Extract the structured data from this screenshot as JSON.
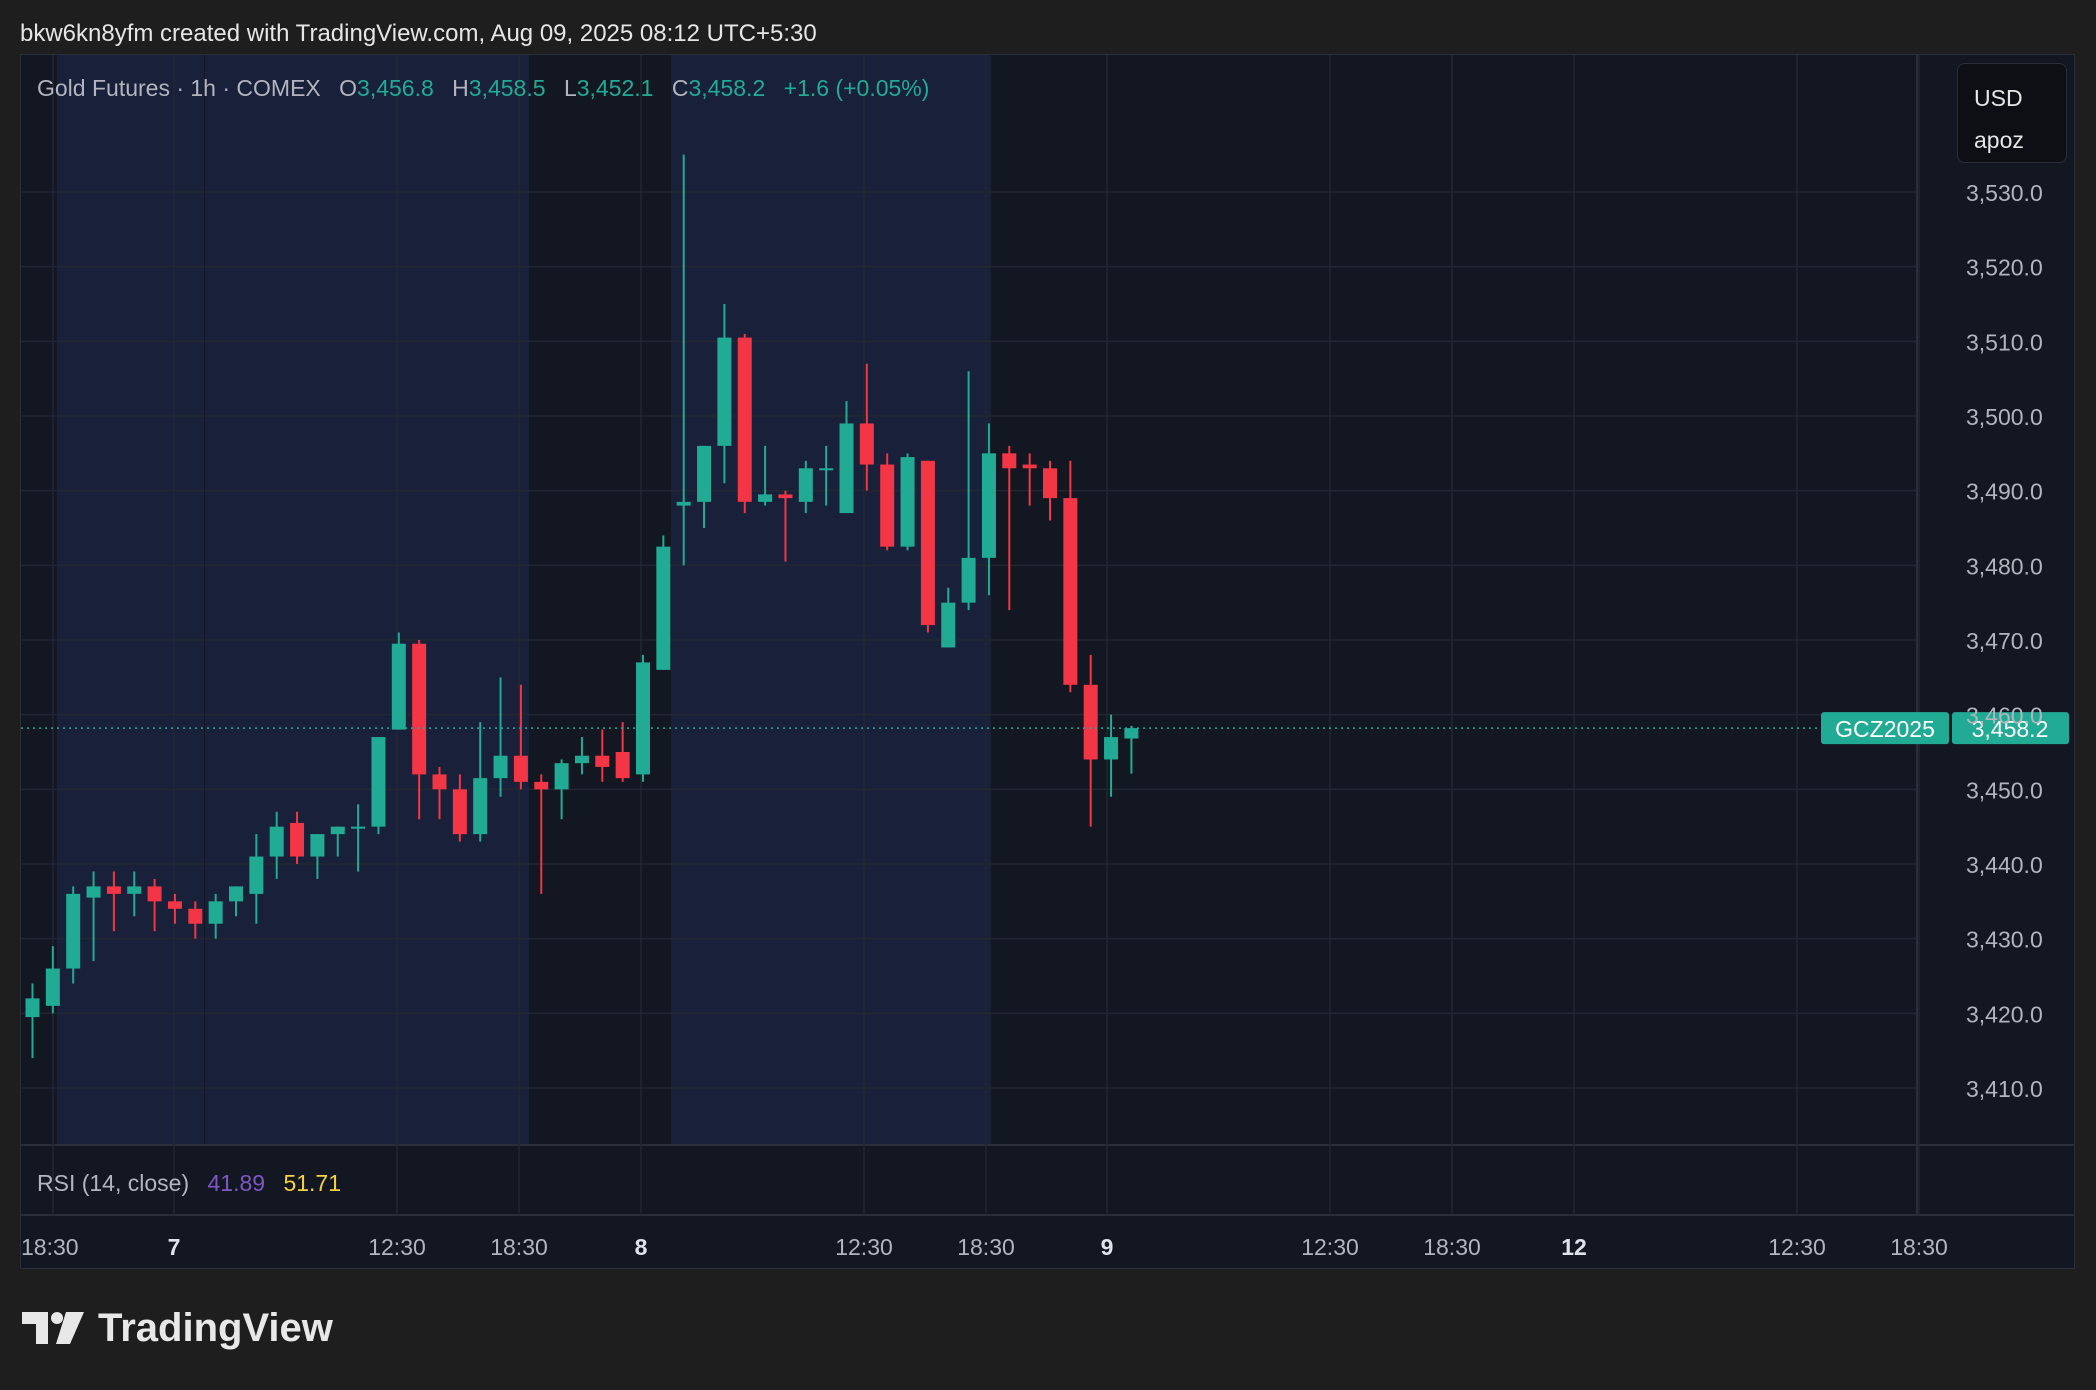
{
  "caption": "bkw6kn8yfm created with TradingView.com, Aug 09, 2025 08:12 UTC+5:30",
  "legend": {
    "symbol": "Gold Futures · 1h · COMEX",
    "open_label": "O",
    "open": "3,456.8",
    "high_label": "H",
    "high": "3,458.5",
    "low_label": "L",
    "low": "3,452.1",
    "close_label": "C",
    "close": "3,458.2",
    "change": "+1.6 (+0.05%)"
  },
  "currency_box": {
    "currency": "USD",
    "unit": "apoz"
  },
  "price_tag": {
    "symbol": "GCZ2025",
    "price": "3,458.2"
  },
  "rsi": {
    "label": "RSI (14, close)",
    "value1": "41.89",
    "value2": "51.71"
  },
  "brand": {
    "wordmark": "TradingView"
  },
  "colors": {
    "up": "#22ab94",
    "down": "#f23645",
    "background": "#131722",
    "session_highlight": "#18203a",
    "grid": "#232733",
    "rsi_a": "#7e57c2",
    "rsi_b": "#f5d142"
  },
  "chart_data": {
    "type": "candlestick",
    "interval": "1h",
    "ylim": [
      3402,
      3547
    ],
    "y_ticks": [
      "3,410.0",
      "3,420.0",
      "3,430.0",
      "3,440.0",
      "3,450.0",
      "3,460.0",
      "3,470.0",
      "3,480.0",
      "3,490.0",
      "3,500.0",
      "3,510.0",
      "3,520.0",
      "3,530.0"
    ],
    "x_ticks": [
      {
        "label": "18:30",
        "bold": false
      },
      {
        "label": "7",
        "bold": true
      },
      {
        "label": "12:30",
        "bold": false
      },
      {
        "label": "18:30",
        "bold": false
      },
      {
        "label": "8",
        "bold": true
      },
      {
        "label": "12:30",
        "bold": false
      },
      {
        "label": "18:30",
        "bold": false
      },
      {
        "label": "9",
        "bold": true
      },
      {
        "label": "12:30",
        "bold": false
      },
      {
        "label": "18:30",
        "bold": false
      },
      {
        "label": "12",
        "bold": true
      },
      {
        "label": "12:30",
        "bold": false
      },
      {
        "label": "18:30",
        "bold": false
      }
    ],
    "last_price": 3458.2,
    "candles": [
      {
        "o": 3419.5,
        "h": 3424,
        "l": 3414,
        "c": 3422
      },
      {
        "o": 3421,
        "h": 3429,
        "l": 3420,
        "c": 3426
      },
      {
        "o": 3426,
        "h": 3437,
        "l": 3424,
        "c": 3436
      },
      {
        "o": 3435.5,
        "h": 3439,
        "l": 3427,
        "c": 3437
      },
      {
        "o": 3437,
        "h": 3439,
        "l": 3431,
        "c": 3436
      },
      {
        "o": 3436,
        "h": 3439,
        "l": 3433,
        "c": 3437
      },
      {
        "o": 3437,
        "h": 3438,
        "l": 3431,
        "c": 3435
      },
      {
        "o": 3435,
        "h": 3436,
        "l": 3432,
        "c": 3434
      },
      {
        "o": 3434,
        "h": 3435,
        "l": 3430,
        "c": 3432
      },
      {
        "o": 3432,
        "h": 3436,
        "l": 3430,
        "c": 3435
      },
      {
        "o": 3435,
        "h": 3437,
        "l": 3433,
        "c": 3437
      },
      {
        "o": 3436,
        "h": 3444,
        "l": 3432,
        "c": 3441
      },
      {
        "o": 3441,
        "h": 3447,
        "l": 3438,
        "c": 3445
      },
      {
        "o": 3445.5,
        "h": 3447,
        "l": 3440,
        "c": 3441
      },
      {
        "o": 3441,
        "h": 3444,
        "l": 3438,
        "c": 3444
      },
      {
        "o": 3444,
        "h": 3445,
        "l": 3441,
        "c": 3445
      },
      {
        "o": 3445,
        "h": 3448,
        "l": 3439,
        "c": 3445
      },
      {
        "o": 3445,
        "h": 3457,
        "l": 3444,
        "c": 3457
      },
      {
        "o": 3458,
        "h": 3471,
        "l": 3458,
        "c": 3469.5
      },
      {
        "o": 3469.5,
        "h": 3470,
        "l": 3446,
        "c": 3452
      },
      {
        "o": 3452,
        "h": 3453,
        "l": 3446,
        "c": 3450
      },
      {
        "o": 3450,
        "h": 3452,
        "l": 3443,
        "c": 3444
      },
      {
        "o": 3444,
        "h": 3459,
        "l": 3443,
        "c": 3451.5
      },
      {
        "o": 3451.5,
        "h": 3465,
        "l": 3449,
        "c": 3454.5
      },
      {
        "o": 3454.5,
        "h": 3464,
        "l": 3450,
        "c": 3451
      },
      {
        "o": 3451,
        "h": 3452,
        "l": 3436,
        "c": 3450
      },
      {
        "o": 3450,
        "h": 3454,
        "l": 3446,
        "c": 3453.5
      },
      {
        "o": 3453.5,
        "h": 3457,
        "l": 3452,
        "c": 3454.5
      },
      {
        "o": 3454.5,
        "h": 3458,
        "l": 3451,
        "c": 3453
      },
      {
        "o": 3455,
        "h": 3459,
        "l": 3451,
        "c": 3451.5
      },
      {
        "o": 3452,
        "h": 3468,
        "l": 3451,
        "c": 3467
      },
      {
        "o": 3466,
        "h": 3484,
        "l": 3466,
        "c": 3482.5
      },
      {
        "o": 3488,
        "h": 3535,
        "l": 3480,
        "c": 3488.5
      },
      {
        "o": 3488.5,
        "h": 3496,
        "l": 3485,
        "c": 3496
      },
      {
        "o": 3496,
        "h": 3515,
        "l": 3491,
        "c": 3510.5
      },
      {
        "o": 3510.5,
        "h": 3511,
        "l": 3487,
        "c": 3488.5
      },
      {
        "o": 3488.5,
        "h": 3496,
        "l": 3488,
        "c": 3489.5
      },
      {
        "o": 3489.5,
        "h": 3490,
        "l": 3480.5,
        "c": 3489
      },
      {
        "o": 3488.5,
        "h": 3494,
        "l": 3487,
        "c": 3493
      },
      {
        "o": 3493,
        "h": 3496,
        "l": 3488,
        "c": 3493
      },
      {
        "o": 3487,
        "h": 3502,
        "l": 3487,
        "c": 3499
      },
      {
        "o": 3499,
        "h": 3507,
        "l": 3490,
        "c": 3493.5
      },
      {
        "o": 3493.5,
        "h": 3495,
        "l": 3482,
        "c": 3482.5
      },
      {
        "o": 3482.5,
        "h": 3495,
        "l": 3482,
        "c": 3494.5
      },
      {
        "o": 3494,
        "h": 3494,
        "l": 3471,
        "c": 3472
      },
      {
        "o": 3469,
        "h": 3477,
        "l": 3469,
        "c": 3475
      },
      {
        "o": 3475,
        "h": 3506,
        "l": 3474,
        "c": 3481
      },
      {
        "o": 3481,
        "h": 3499,
        "l": 3476,
        "c": 3495
      },
      {
        "o": 3495,
        "h": 3496,
        "l": 3474,
        "c": 3493
      },
      {
        "o": 3493.5,
        "h": 3495,
        "l": 3488,
        "c": 3493
      },
      {
        "o": 3493,
        "h": 3494,
        "l": 3486,
        "c": 3489
      },
      {
        "o": 3489,
        "h": 3494,
        "l": 3463,
        "c": 3464
      },
      {
        "o": 3464,
        "h": 3468,
        "l": 3445,
        "c": 3454
      },
      {
        "o": 3454,
        "h": 3460,
        "l": 3449,
        "c": 3457
      },
      {
        "o": 3456.8,
        "h": 3458.5,
        "l": 3452.1,
        "c": 3458.2
      }
    ]
  }
}
